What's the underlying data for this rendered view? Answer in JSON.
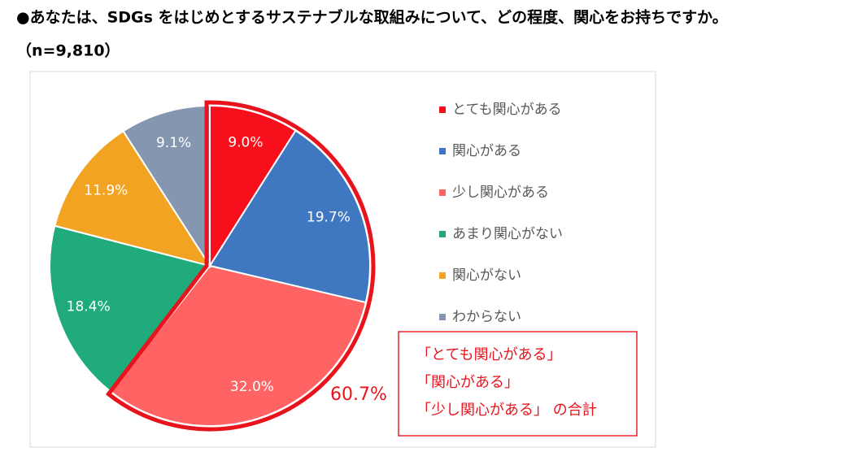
{
  "chart_data": {
    "type": "pie",
    "title": "●あなたは、SDGs をはじめとするサステナブルな取組みについて、どの程度、関心をお持ちですか。",
    "subtitle": "（n=9,810）",
    "categories": [
      "とても関心がある",
      "関心がある",
      "少し関心がある",
      "あまり関心がない",
      "関心がない",
      "わからない"
    ],
    "values": [
      9.0,
      19.7,
      32.0,
      18.4,
      11.9,
      9.1
    ],
    "value_labels": [
      "9.0%",
      "19.7%",
      "32.0%",
      "18.4%",
      "11.9%",
      "9.1%"
    ],
    "colors": [
      "#f7101c",
      "#3f78c0",
      "#ff6363",
      "#1fab7b",
      "#f3a322",
      "#8597b0"
    ],
    "legend": "right",
    "annotation": {
      "total": "60.7%",
      "lines": [
        "「とても関心がある」",
        "「関心がある」",
        "「少し関心がある」 の合計"
      ]
    }
  }
}
